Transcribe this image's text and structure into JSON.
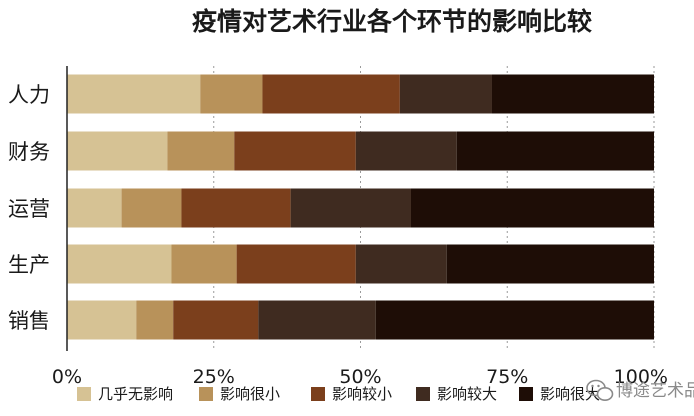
{
  "chart_data": {
    "type": "bar",
    "orientation": "horizontal",
    "stacked": true,
    "title": "疫情对艺术行业各个环节的影响比较",
    "categories": [
      "人力",
      "财务",
      "运营",
      "生产",
      "销售"
    ],
    "series": [
      {
        "name": "几乎无影响",
        "color": "#d6c294",
        "values": [
          22.7,
          17.1,
          9.3,
          17.8,
          11.8
        ]
      },
      {
        "name": "影响很小",
        "color": "#b8925a",
        "values": [
          10.6,
          11.4,
          10.2,
          11.1,
          6.3
        ]
      },
      {
        "name": "影响较小",
        "color": "#7b3f1c",
        "values": [
          23.4,
          20.7,
          18.6,
          20.3,
          14.5
        ]
      },
      {
        "name": "影响较大",
        "color": "#3f2b20",
        "values": [
          15.7,
          17.2,
          20.5,
          15.5,
          20.0
        ]
      },
      {
        "name": "影响很大",
        "color": "#1e0d06",
        "values": [
          27.6,
          33.6,
          41.4,
          35.3,
          47.4
        ]
      }
    ],
    "xlim": [
      0,
      100
    ],
    "xticks": [
      "0%",
      "25%",
      "50%",
      "75%",
      "100%"
    ],
    "xlabel": "",
    "ylabel": "",
    "grid": true,
    "legend_position": "bottom"
  },
  "watermark": {
    "text": "博途艺术品",
    "icon": "wechat-icon"
  }
}
